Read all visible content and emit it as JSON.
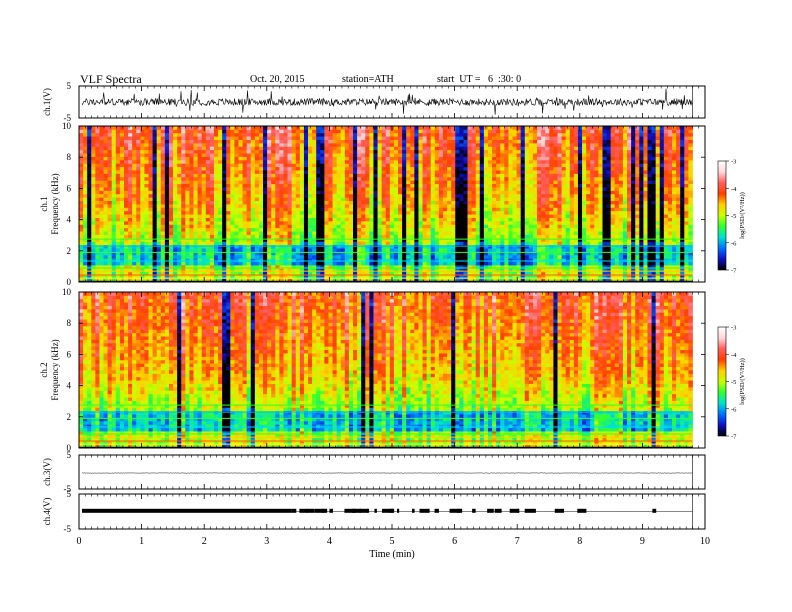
{
  "header": {
    "title": "VLF Spectra",
    "date": "Oct. 20, 2015",
    "station": "station=ATH",
    "start": "start  UT =   6  :30: 0"
  },
  "chart_data": [
    {
      "type": "line",
      "name": "ch1_waveform",
      "ylabel": "ch.1(V)",
      "ylim": [
        -5,
        5
      ],
      "yticks": [
        "5",
        "-5"
      ],
      "note_baseline_level": 0
    },
    {
      "type": "heatmap",
      "name": "ch1_spectrogram",
      "ylabel_channel": "ch.1",
      "ylabel": "Frequency  (kHz)",
      "ylim": [
        0,
        10
      ],
      "yticks": [
        "0",
        "2",
        "4",
        "6",
        "8",
        "10"
      ],
      "colorbar": {
        "label": "log(PSD/(V²/Hz))",
        "range": [
          -7,
          -3
        ],
        "ticks": [
          "-3",
          "-4",
          "-5",
          "-6",
          "-7"
        ],
        "colors": [
          "#000000",
          "#1010c0",
          "#0070ff",
          "#00e0d0",
          "#30ff30",
          "#c8ff00",
          "#ffd000",
          "#ff4000",
          "#ff6060",
          "#ffd8d8",
          "#ffffff"
        ]
      }
    },
    {
      "type": "heatmap",
      "name": "ch2_spectrogram",
      "ylabel_channel": "ch.2",
      "ylabel": "Frequency  (kHz)",
      "ylim": [
        0,
        10
      ],
      "yticks": [
        "0",
        "2",
        "4",
        "6",
        "8",
        "10"
      ],
      "colorbar": {
        "label": "log(PSD/(V²/Hz))",
        "range": [
          -7,
          -3
        ],
        "ticks": [
          "-3",
          "-4",
          "-5",
          "-6",
          "-7"
        ]
      }
    },
    {
      "type": "line",
      "name": "ch3_waveform",
      "ylabel": "ch.3(V)",
      "ylim": [
        -5,
        5
      ],
      "yticks": [
        "5",
        "-5"
      ]
    },
    {
      "type": "line",
      "name": "ch4_waveform",
      "ylabel": "ch.4(V)",
      "ylim": [
        -5,
        5
      ],
      "yticks": [
        "5",
        "-5"
      ]
    }
  ],
  "x_axis": {
    "label": "Time  (min)",
    "range": [
      0,
      10
    ],
    "ticks": [
      "0",
      "1",
      "2",
      "3",
      "4",
      "5",
      "6",
      "7",
      "8",
      "9",
      "10"
    ],
    "data_end": 9.8
  }
}
